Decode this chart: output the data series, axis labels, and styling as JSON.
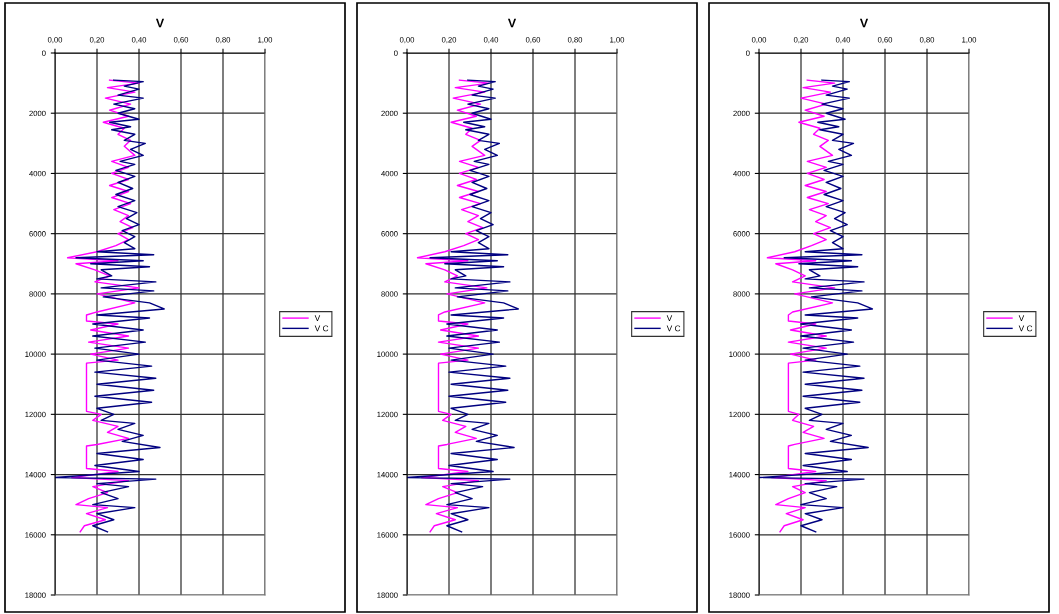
{
  "chart_data": [
    {
      "type": "line",
      "title": "V",
      "xlim": [
        0,
        1
      ],
      "xticks": [
        {
          "value": 0,
          "label": "0,00"
        },
        {
          "value": 0.2,
          "label": "0,20"
        },
        {
          "value": 0.4,
          "label": "0,40"
        },
        {
          "value": 0.6,
          "label": "0,60"
        },
        {
          "value": 0.8,
          "label": "0,80"
        },
        {
          "value": 1,
          "label": "1,00"
        }
      ],
      "ylim": [
        18000,
        0
      ],
      "yticks": [
        0,
        2000,
        4000,
        6000,
        8000,
        10000,
        12000,
        14000,
        16000,
        18000
      ],
      "grid": true,
      "legend": "right",
      "series": [
        {
          "name": "V",
          "color": "#ff00ff",
          "x": [
            0.26,
            0.4,
            0.25,
            0.38,
            0.24,
            0.36,
            0.26,
            0.35,
            0.23,
            0.33,
            0.3,
            0.36,
            0.33,
            0.38,
            0.27,
            0.35,
            0.27,
            0.35,
            0.26,
            0.35,
            0.27,
            0.36,
            0.28,
            0.35,
            0.31,
            0.37,
            0.3,
            0.35,
            0.29,
            0.2,
            0.06,
            0.3,
            0.1,
            0.19,
            0.26,
            0.19,
            0.4,
            0.2,
            0.38,
            0.2,
            0.15,
            0.15,
            0.3,
            0.17,
            0.35,
            0.16,
            0.35,
            0.17,
            0.3,
            0.15,
            0.15,
            0.22,
            0.18,
            0.3,
            0.25,
            0.35,
            0.2,
            0.15,
            0.15,
            0.3,
            0.08,
            0.35,
            0.18,
            0.25,
            0.16,
            0.1,
            0.25,
            0.15,
            0.24,
            0.14,
            0.12
          ],
          "values": [
            900,
            1000,
            1150,
            1300,
            1500,
            1700,
            1900,
            2100,
            2300,
            2500,
            2700,
            2900,
            3100,
            3400,
            3600,
            3800,
            4000,
            4200,
            4400,
            4600,
            4800,
            5000,
            5200,
            5400,
            5600,
            5800,
            6000,
            6200,
            6400,
            6600,
            6800,
            6900,
            7000,
            7200,
            7400,
            7600,
            7800,
            8000,
            8300,
            8600,
            8700,
            8900,
            9000,
            9200,
            9400,
            9600,
            9800,
            10000,
            10200,
            10300,
            11900,
            12000,
            12200,
            12400,
            12600,
            12800,
            13000,
            13050,
            13800,
            13900,
            14100,
            14200,
            14400,
            14600,
            14800,
            15000,
            15100,
            15300,
            15500,
            15700,
            15900
          ]
        },
        {
          "name": "V C",
          "color": "#000080",
          "x": [
            0.28,
            0.42,
            0.33,
            0.4,
            0.3,
            0.42,
            0.28,
            0.38,
            0.3,
            0.4,
            0.26,
            0.36,
            0.27,
            0.38,
            0.33,
            0.43,
            0.36,
            0.42,
            0.31,
            0.38,
            0.29,
            0.38,
            0.3,
            0.37,
            0.29,
            0.38,
            0.3,
            0.39,
            0.34,
            0.4,
            0.32,
            0.38,
            0.33,
            0.38,
            0.2,
            0.47,
            0.1,
            0.42,
            0.17,
            0.45,
            0.22,
            0.27,
            0.2,
            0.48,
            0.22,
            0.47,
            0.23,
            0.45,
            0.52,
            0.2,
            0.45,
            0.18,
            0.42,
            0.18,
            0.43,
            0.19,
            0.4,
            0.2,
            0.46,
            0.19,
            0.48,
            0.2,
            0.47,
            0.19,
            0.46,
            0.2,
            0.28,
            0.22,
            0.38,
            0.3,
            0.42,
            0.32,
            0.5,
            0.2,
            0.42,
            0.19,
            0.4,
            0.0,
            0.48,
            0.2,
            0.35,
            0.22,
            0.3,
            0.18,
            0.38,
            0.2,
            0.28,
            0.18,
            0.25
          ],
          "values": [
            900,
            950,
            1100,
            1200,
            1400,
            1500,
            1700,
            1850,
            2000,
            2200,
            2300,
            2450,
            2550,
            2700,
            2900,
            3000,
            3200,
            3400,
            3600,
            3700,
            3900,
            4100,
            4300,
            4500,
            4700,
            4900,
            5100,
            5300,
            5500,
            5700,
            5900,
            6100,
            6300,
            6500,
            6600,
            6700,
            6800,
            6900,
            7000,
            7100,
            7200,
            7400,
            7500,
            7600,
            7800,
            7900,
            8100,
            8300,
            8500,
            8700,
            8800,
            9000,
            9200,
            9400,
            9600,
            9800,
            10000,
            10200,
            10400,
            10600,
            10800,
            11000,
            11200,
            11400,
            11600,
            11800,
            12000,
            12200,
            12300,
            12500,
            12700,
            12900,
            13100,
            13300,
            13500,
            13700,
            13900,
            14100,
            14150,
            14300,
            14400,
            14600,
            14800,
            15000,
            15100,
            15300,
            15500,
            15700,
            15900
          ]
        }
      ]
    },
    {
      "type": "line",
      "title": "V",
      "xlim": [
        0,
        1
      ],
      "xticks": [
        {
          "value": 0,
          "label": "0,00"
        },
        {
          "value": 0.2,
          "label": "0,20"
        },
        {
          "value": 0.4,
          "label": "0,40"
        },
        {
          "value": 0.6,
          "label": "0,60"
        },
        {
          "value": 0.8,
          "label": "0,80"
        },
        {
          "value": 1,
          "label": "1,00"
        }
      ],
      "ylim": [
        18000,
        0
      ],
      "yticks": [
        0,
        2000,
        4000,
        6000,
        8000,
        10000,
        12000,
        14000,
        16000,
        18000
      ],
      "grid": true,
      "legend": "right",
      "series": [
        {
          "name": "V",
          "color": "#ff00ff",
          "x": [
            0.25,
            0.39,
            0.23,
            0.37,
            0.22,
            0.35,
            0.24,
            0.33,
            0.21,
            0.31,
            0.28,
            0.35,
            0.31,
            0.37,
            0.25,
            0.34,
            0.25,
            0.33,
            0.24,
            0.34,
            0.25,
            0.35,
            0.26,
            0.34,
            0.29,
            0.36,
            0.28,
            0.34,
            0.27,
            0.18,
            0.05,
            0.29,
            0.09,
            0.18,
            0.24,
            0.18,
            0.38,
            0.19,
            0.37,
            0.18,
            0.15,
            0.15,
            0.29,
            0.16,
            0.34,
            0.15,
            0.34,
            0.16,
            0.29,
            0.15,
            0.15,
            0.21,
            0.17,
            0.28,
            0.23,
            0.33,
            0.19,
            0.15,
            0.15,
            0.29,
            0.07,
            0.34,
            0.17,
            0.24,
            0.15,
            0.09,
            0.24,
            0.14,
            0.23,
            0.13,
            0.11
          ],
          "values": [
            900,
            1000,
            1150,
            1300,
            1500,
            1700,
            1900,
            2100,
            2300,
            2500,
            2700,
            2900,
            3100,
            3400,
            3600,
            3800,
            4000,
            4200,
            4400,
            4600,
            4800,
            5000,
            5200,
            5400,
            5600,
            5800,
            6000,
            6200,
            6400,
            6600,
            6800,
            6900,
            7000,
            7200,
            7400,
            7600,
            7800,
            8000,
            8300,
            8600,
            8700,
            8900,
            9000,
            9200,
            9400,
            9600,
            9800,
            10000,
            10200,
            10300,
            11900,
            12000,
            12200,
            12400,
            12600,
            12800,
            13000,
            13050,
            13800,
            13900,
            14100,
            14200,
            14400,
            14600,
            14800,
            15000,
            15100,
            15300,
            15500,
            15700,
            15900
          ]
        },
        {
          "name": "V C",
          "color": "#000080",
          "x": [
            0.29,
            0.42,
            0.34,
            0.41,
            0.31,
            0.42,
            0.29,
            0.39,
            0.31,
            0.4,
            0.27,
            0.37,
            0.28,
            0.39,
            0.34,
            0.44,
            0.37,
            0.43,
            0.32,
            0.39,
            0.3,
            0.39,
            0.31,
            0.38,
            0.3,
            0.39,
            0.31,
            0.4,
            0.35,
            0.41,
            0.33,
            0.39,
            0.34,
            0.39,
            0.21,
            0.48,
            0.11,
            0.43,
            0.18,
            0.46,
            0.23,
            0.28,
            0.21,
            0.49,
            0.23,
            0.48,
            0.24,
            0.46,
            0.53,
            0.21,
            0.46,
            0.19,
            0.43,
            0.19,
            0.44,
            0.2,
            0.41,
            0.21,
            0.47,
            0.2,
            0.49,
            0.21,
            0.48,
            0.2,
            0.47,
            0.21,
            0.29,
            0.23,
            0.39,
            0.31,
            0.43,
            0.33,
            0.51,
            0.21,
            0.43,
            0.2,
            0.41,
            0.0,
            0.49,
            0.21,
            0.36,
            0.23,
            0.31,
            0.19,
            0.39,
            0.21,
            0.29,
            0.19,
            0.26
          ],
          "values": [
            900,
            950,
            1100,
            1200,
            1400,
            1500,
            1700,
            1850,
            2000,
            2200,
            2300,
            2450,
            2550,
            2700,
            2900,
            3000,
            3200,
            3400,
            3600,
            3700,
            3900,
            4100,
            4300,
            4500,
            4700,
            4900,
            5100,
            5300,
            5500,
            5700,
            5900,
            6100,
            6300,
            6500,
            6600,
            6700,
            6800,
            6900,
            7000,
            7100,
            7200,
            7400,
            7500,
            7600,
            7800,
            7900,
            8100,
            8300,
            8500,
            8700,
            8800,
            9000,
            9200,
            9400,
            9600,
            9800,
            10000,
            10200,
            10400,
            10600,
            10800,
            11000,
            11200,
            11400,
            11600,
            11800,
            12000,
            12200,
            12300,
            12500,
            12700,
            12900,
            13100,
            13300,
            13500,
            13700,
            13900,
            14100,
            14150,
            14300,
            14400,
            14600,
            14800,
            15000,
            15100,
            15300,
            15500,
            15700,
            15900
          ]
        }
      ]
    },
    {
      "type": "line",
      "title": "V",
      "xlim": [
        0,
        1
      ],
      "xticks": [
        {
          "value": 0,
          "label": "0,00"
        },
        {
          "value": 0.2,
          "label": "0,20"
        },
        {
          "value": 0.4,
          "label": "0,40"
        },
        {
          "value": 0.6,
          "label": "0,60"
        },
        {
          "value": 0.8,
          "label": "0,80"
        },
        {
          "value": 1,
          "label": "1,00"
        }
      ],
      "ylim": [
        18000,
        0
      ],
      "yticks": [
        0,
        2000,
        4000,
        6000,
        8000,
        10000,
        12000,
        14000,
        16000,
        18000
      ],
      "grid": true,
      "legend": "right",
      "series": [
        {
          "name": "V",
          "color": "#ff00ff",
          "x": [
            0.23,
            0.36,
            0.21,
            0.34,
            0.2,
            0.32,
            0.22,
            0.31,
            0.19,
            0.29,
            0.26,
            0.33,
            0.29,
            0.35,
            0.23,
            0.32,
            0.23,
            0.31,
            0.22,
            0.32,
            0.23,
            0.33,
            0.24,
            0.32,
            0.27,
            0.34,
            0.26,
            0.32,
            0.25,
            0.17,
            0.04,
            0.27,
            0.08,
            0.16,
            0.22,
            0.16,
            0.36,
            0.17,
            0.35,
            0.16,
            0.14,
            0.14,
            0.27,
            0.15,
            0.32,
            0.14,
            0.32,
            0.15,
            0.27,
            0.14,
            0.14,
            0.19,
            0.16,
            0.26,
            0.21,
            0.31,
            0.17,
            0.14,
            0.14,
            0.27,
            0.06,
            0.32,
            0.16,
            0.22,
            0.14,
            0.08,
            0.22,
            0.13,
            0.21,
            0.12,
            0.1
          ],
          "values": [
            900,
            1000,
            1150,
            1300,
            1500,
            1700,
            1900,
            2100,
            2300,
            2500,
            2700,
            2900,
            3100,
            3400,
            3600,
            3800,
            4000,
            4200,
            4400,
            4600,
            4800,
            5000,
            5200,
            5400,
            5600,
            5800,
            6000,
            6200,
            6400,
            6600,
            6800,
            6900,
            7000,
            7200,
            7400,
            7600,
            7800,
            8000,
            8300,
            8600,
            8700,
            8900,
            9000,
            9200,
            9400,
            9600,
            9800,
            10000,
            10200,
            10300,
            11900,
            12000,
            12200,
            12400,
            12600,
            12800,
            13000,
            13050,
            13800,
            13900,
            14100,
            14200,
            14400,
            14600,
            14800,
            15000,
            15100,
            15300,
            15500,
            15700,
            15900
          ]
        },
        {
          "name": "V C",
          "color": "#000080",
          "x": [
            0.3,
            0.43,
            0.35,
            0.42,
            0.32,
            0.43,
            0.3,
            0.4,
            0.32,
            0.41,
            0.28,
            0.38,
            0.29,
            0.4,
            0.35,
            0.45,
            0.38,
            0.44,
            0.33,
            0.4,
            0.31,
            0.4,
            0.32,
            0.39,
            0.31,
            0.4,
            0.32,
            0.41,
            0.36,
            0.42,
            0.34,
            0.4,
            0.35,
            0.4,
            0.22,
            0.49,
            0.12,
            0.44,
            0.19,
            0.47,
            0.24,
            0.29,
            0.22,
            0.5,
            0.24,
            0.49,
            0.25,
            0.47,
            0.54,
            0.22,
            0.47,
            0.2,
            0.44,
            0.2,
            0.45,
            0.21,
            0.42,
            0.22,
            0.48,
            0.21,
            0.5,
            0.22,
            0.49,
            0.21,
            0.48,
            0.22,
            0.3,
            0.24,
            0.4,
            0.32,
            0.44,
            0.34,
            0.52,
            0.22,
            0.44,
            0.21,
            0.42,
            0.0,
            0.5,
            0.22,
            0.37,
            0.24,
            0.32,
            0.2,
            0.4,
            0.22,
            0.3,
            0.2,
            0.27
          ],
          "values": [
            900,
            950,
            1100,
            1200,
            1400,
            1500,
            1700,
            1850,
            2000,
            2200,
            2300,
            2450,
            2550,
            2700,
            2900,
            3000,
            3200,
            3400,
            3600,
            3700,
            3900,
            4100,
            4300,
            4500,
            4700,
            4900,
            5100,
            5300,
            5500,
            5700,
            5900,
            6100,
            6300,
            6500,
            6600,
            6700,
            6800,
            6900,
            7000,
            7100,
            7200,
            7400,
            7500,
            7600,
            7800,
            7900,
            8100,
            8300,
            8500,
            8700,
            8800,
            9000,
            9200,
            9400,
            9600,
            9800,
            10000,
            10200,
            10400,
            10600,
            10800,
            11000,
            11200,
            11400,
            11600,
            11800,
            12000,
            12200,
            12300,
            12500,
            12700,
            12900,
            13100,
            13300,
            13500,
            13700,
            13900,
            14100,
            14150,
            14300,
            14400,
            14600,
            14800,
            15000,
            15100,
            15300,
            15500,
            15700,
            15900
          ]
        }
      ]
    }
  ]
}
